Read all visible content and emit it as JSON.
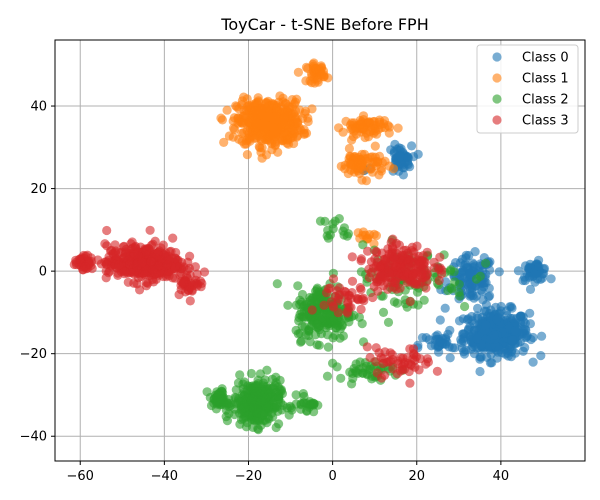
{
  "chart_data": {
    "type": "scatter",
    "title": "ToyCar - t-SNE Before FPH",
    "xlabel": "",
    "ylabel": "",
    "xlim": [
      -66,
      60
    ],
    "ylim": [
      -46,
      56
    ],
    "xticks": [
      -60,
      -40,
      -20,
      0,
      20,
      40
    ],
    "yticks": [
      -40,
      -20,
      0,
      20,
      40
    ],
    "x_tick_labels": [
      "−60",
      "−40",
      "−20",
      "0",
      "20",
      "40"
    ],
    "y_tick_labels": [
      "−40",
      "−20",
      "0",
      "20",
      "40"
    ],
    "grid": true,
    "legend_position": "top-right",
    "marker_alpha": 0.6,
    "note": "Individual point positions cannot be read from the image; each series is described by its visible clusters (approximate center, spread and point count).",
    "series": [
      {
        "name": "Class 0",
        "color": "#1f77b4",
        "clusters": [
          {
            "center": [
              39,
              -15
            ],
            "spread": [
              7,
              5
            ],
            "count": 380
          },
          {
            "center": [
              33,
              -2
            ],
            "spread": [
              5,
              5
            ],
            "count": 110
          },
          {
            "center": [
              48,
              0
            ],
            "spread": [
              3,
              2
            ],
            "count": 45
          },
          {
            "center": [
              16,
              27
            ],
            "spread": [
              2.5,
              3
            ],
            "count": 50
          },
          {
            "center": [
              26,
              -18
            ],
            "spread": [
              5,
              3
            ],
            "count": 35
          },
          {
            "center": [
              7,
              25
            ],
            "spread": [
              2,
              2
            ],
            "count": 6
          }
        ]
      },
      {
        "name": "Class 1",
        "color": "#ff7f0e",
        "clusters": [
          {
            "center": [
              -15,
              36
            ],
            "spread": [
              7,
              5
            ],
            "count": 450
          },
          {
            "center": [
              -4,
              48
            ],
            "spread": [
              2,
              2
            ],
            "count": 40
          },
          {
            "center": [
              8,
              35
            ],
            "spread": [
              5,
              2
            ],
            "count": 70
          },
          {
            "center": [
              7,
              26
            ],
            "spread": [
              5,
              3
            ],
            "count": 70
          },
          {
            "center": [
              8,
              8
            ],
            "spread": [
              3,
              1
            ],
            "count": 12
          }
        ]
      },
      {
        "name": "Class 2",
        "color": "#2ca02c",
        "clusters": [
          {
            "center": [
              -18,
              -32
            ],
            "spread": [
              5,
              5
            ],
            "count": 300
          },
          {
            "center": [
              -27,
              -31
            ],
            "spread": [
              2,
              2
            ],
            "count": 45
          },
          {
            "center": [
              -6,
              -32
            ],
            "spread": [
              2,
              2
            ],
            "count": 25
          },
          {
            "center": [
              -2,
              -10
            ],
            "spread": [
              6,
              6
            ],
            "count": 220
          },
          {
            "center": [
              18,
              -2
            ],
            "spread": [
              14,
              7
            ],
            "count": 90
          },
          {
            "center": [
              8,
              -24
            ],
            "spread": [
              6,
              2
            ],
            "count": 45
          },
          {
            "center": [
              1,
              10
            ],
            "spread": [
              4,
              3
            ],
            "count": 15
          }
        ]
      },
      {
        "name": "Class 3",
        "color": "#d62728",
        "clusters": [
          {
            "center": [
              -45,
              2
            ],
            "spread": [
              8,
              4
            ],
            "count": 380
          },
          {
            "center": [
              -59,
              2
            ],
            "spread": [
              2,
              1.5
            ],
            "count": 40
          },
          {
            "center": [
              -34,
              -3
            ],
            "spread": [
              3,
              2.5
            ],
            "count": 40
          },
          {
            "center": [
              16,
              1
            ],
            "spread": [
              7,
              5
            ],
            "count": 200
          },
          {
            "center": [
              16,
              -22
            ],
            "spread": [
              7,
              3
            ],
            "count": 50
          },
          {
            "center": [
              3,
              -7
            ],
            "spread": [
              5,
              5
            ],
            "count": 40
          }
        ]
      }
    ]
  }
}
